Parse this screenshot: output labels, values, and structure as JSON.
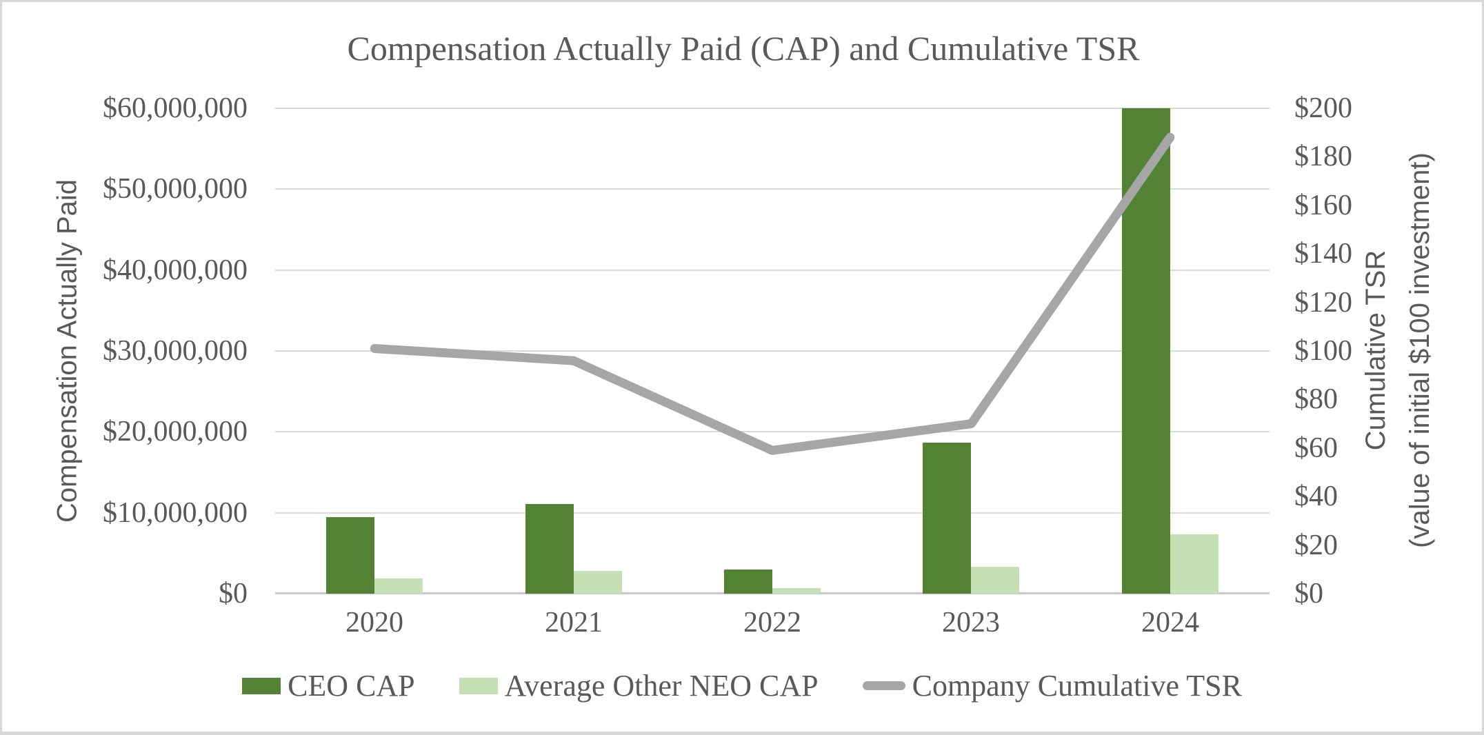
{
  "title": "Compensation Actually Paid (CAP) and Cumulative TSR",
  "axes": {
    "left": {
      "title": "Compensation Actually Paid",
      "tick_labels_bottom_up": [
        "$0",
        "$10,000,000",
        "$20,000,000",
        "$30,000,000",
        "$40,000,000",
        "$50,000,000",
        "$60,000,000"
      ]
    },
    "right": {
      "title_line1": "Cumulative TSR",
      "title_line2": "(value of initial $100 investment)",
      "tick_labels_bottom_up": [
        "$0",
        "$20",
        "$40",
        "$60",
        "$80",
        "$100",
        "$120",
        "$140",
        "$160",
        "$180",
        "$200"
      ]
    },
    "x": {
      "categories": [
        "2020",
        "2021",
        "2022",
        "2023",
        "2024"
      ]
    }
  },
  "legend": {
    "items": [
      {
        "label": "CEO CAP",
        "swatch": "bar",
        "color": "#548235"
      },
      {
        "label": "Average Other NEO CAP",
        "swatch": "bar",
        "color": "#C5E0B4"
      },
      {
        "label": "Company Cumulative TSR",
        "swatch": "line",
        "color": "#A6A6A6"
      }
    ]
  },
  "colors": {
    "ceo_bar": "#548235",
    "neo_bar": "#C5E0B4",
    "tsr_line": "#A6A6A6",
    "gridline": "#D9D9D9",
    "baseline": "#C9C9C9",
    "text": "#595959",
    "border": "#D8D8D8",
    "background": "#FFFFFF"
  },
  "chart_data": {
    "type": "bar+line",
    "title": "Compensation Actually Paid (CAP) and Cumulative TSR",
    "categories": [
      "2020",
      "2021",
      "2022",
      "2023",
      "2024"
    ],
    "series": [
      {
        "name": "CEO CAP",
        "type": "bar",
        "axis": "left",
        "values": [
          9500000,
          11100000,
          3000000,
          18700000,
          60000000
        ]
      },
      {
        "name": "Average Other NEO CAP",
        "type": "bar",
        "axis": "left",
        "values": [
          1900000,
          2800000,
          700000,
          3300000,
          7300000
        ]
      },
      {
        "name": "Company Cumulative TSR",
        "type": "line",
        "axis": "right",
        "values": [
          101,
          96,
          59,
          70,
          188
        ]
      }
    ],
    "left_axis": {
      "label": "Compensation Actually Paid",
      "range": [
        0,
        60000000
      ],
      "step": 10000000
    },
    "right_axis": {
      "label": "Cumulative TSR (value of initial $100 investment)",
      "range": [
        0,
        200
      ],
      "step": 20
    },
    "grid": "horizontal-only",
    "legend_position": "bottom"
  }
}
